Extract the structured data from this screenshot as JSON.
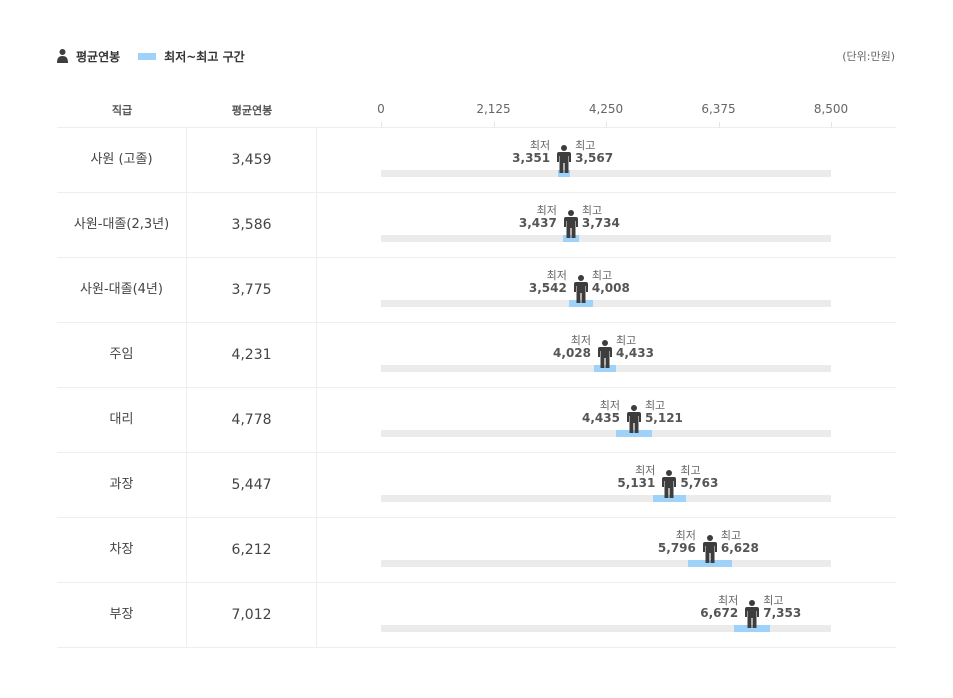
{
  "legend": {
    "avg_label": "평균연봉",
    "range_label": "최저~최고 구간",
    "unit": "(단위:만원)"
  },
  "colors": {
    "person": "#3d3d3d",
    "range": "#9fd2f9",
    "track": "#ebebeb"
  },
  "icons": {
    "average_marker": "person-icon"
  },
  "headers": {
    "grade": "직급",
    "avg": "평균연봉"
  },
  "chart_data": {
    "type": "range-dot",
    "xlim": [
      0,
      8500
    ],
    "ticks": [
      0,
      2125,
      4250,
      6375,
      8500
    ],
    "tick_labels": [
      "0",
      "2,125",
      "4,250",
      "6,375",
      "8,500"
    ],
    "min_caption": "최저",
    "max_caption": "최고",
    "rows": [
      {
        "grade": "사원 (고졸)",
        "avg": 3459,
        "avg_label": "3,459",
        "min": 3351,
        "min_label": "3,351",
        "max": 3567,
        "max_label": "3,567"
      },
      {
        "grade": "사원-대졸(2,3년)",
        "avg": 3586,
        "avg_label": "3,586",
        "min": 3437,
        "min_label": "3,437",
        "max": 3734,
        "max_label": "3,734"
      },
      {
        "grade": "사원-대졸(4년)",
        "avg": 3775,
        "avg_label": "3,775",
        "min": 3542,
        "min_label": "3,542",
        "max": 4008,
        "max_label": "4,008"
      },
      {
        "grade": "주임",
        "avg": 4231,
        "avg_label": "4,231",
        "min": 4028,
        "min_label": "4,028",
        "max": 4433,
        "max_label": "4,433"
      },
      {
        "grade": "대리",
        "avg": 4778,
        "avg_label": "4,778",
        "min": 4435,
        "min_label": "4,435",
        "max": 5121,
        "max_label": "5,121"
      },
      {
        "grade": "과장",
        "avg": 5447,
        "avg_label": "5,447",
        "min": 5131,
        "min_label": "5,131",
        "max": 5763,
        "max_label": "5,763"
      },
      {
        "grade": "차장",
        "avg": 6212,
        "avg_label": "6,212",
        "min": 5796,
        "min_label": "5,796",
        "max": 6628,
        "max_label": "6,628"
      },
      {
        "grade": "부장",
        "avg": 7012,
        "avg_label": "7,012",
        "min": 6672,
        "min_label": "6,672",
        "max": 7353,
        "max_label": "7,353"
      }
    ]
  }
}
